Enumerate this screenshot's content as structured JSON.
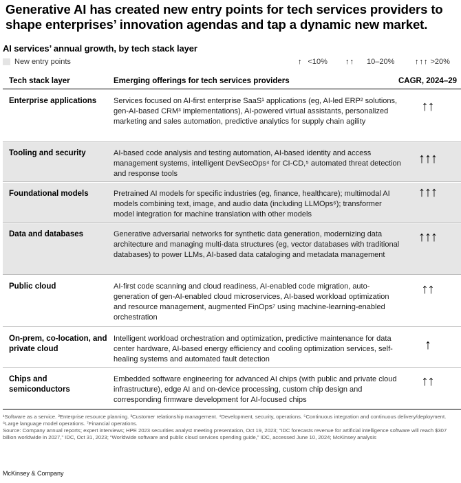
{
  "title": "Generative AI has created new entry points for tech services providers to shape enterprises’ innovation agendas and tap a dynamic new market.",
  "subtitle": "AI services’ annual growth, by tech stack layer",
  "legend": {
    "new_entry": "New entry points",
    "low": {
      "arrows": "↑",
      "label": "<10%"
    },
    "mid": {
      "arrows": "↑↑",
      "label": "10–20%"
    },
    "high": {
      "arrows": "↑↑↑",
      "label": ">20%"
    }
  },
  "headers": {
    "layer": "Tech stack layer",
    "offerings": "Emerging offerings for tech services providers",
    "cagr": "CAGR, 2024–29"
  },
  "rows": [
    {
      "layer": "Enterprise applications",
      "offerings": "Services focused on AI-first enterprise SaaS¹ applications (eg, AI-led ERP² solutions, gen-AI-based CRM³ implementations), AI-powered virtual assistants, personalized marketing and sales automation, predictive analytics for supply chain agility",
      "cagr": "↑↑",
      "new_entry": false
    },
    {
      "layer": "Tooling and security",
      "offerings": "AI-based code analysis and testing automation, AI-based identity and access management systems, intelligent DevSecOps⁴ for CI-CD,⁵ automated threat detection and response tools",
      "cagr": "↑↑↑",
      "new_entry": true
    },
    {
      "layer": "Foundational models",
      "offerings": "Pretrained AI models for specific industries (eg, finance, healthcare); multimodal AI models combining text, image, and audio data (including LLMOps⁶); transformer model integration for machine translation with other models",
      "cagr": "↑↑↑",
      "new_entry": true
    },
    {
      "layer": "Data and databases",
      "offerings": "Generative adversarial networks for synthetic data generation, modernizing data architecture and managing multi-data structures (eg, vector databases with traditional databases) to power LLMs, AI-based data cataloging and metadata management",
      "cagr": "↑↑↑",
      "new_entry": true
    },
    {
      "layer": "Public cloud",
      "offerings": "AI-first code scanning and cloud readiness, AI-enabled code migration, auto-generation of gen-AI-enabled cloud microservices, AI-based workload optimization and resource management, augmented FinOps⁷ using machine-learning-enabled orchestration",
      "cagr": "↑↑",
      "new_entry": false
    },
    {
      "layer": "On-prem, co-location, and private cloud",
      "offerings": "Intelligent workload orchestration and optimization, predictive maintenance for data center hardware, AI-based energy efficiency and cooling optimization services, self-healing systems and automated fault detection",
      "cagr": "↑",
      "new_entry": false
    },
    {
      "layer": "Chips and semiconductors",
      "offerings": "Embedded software engineering for advanced AI chips (with public and private cloud infrastructure), edge AI and on-device processing, custom chip design and corresponding firmware development for AI-focused chips",
      "cagr": "↑↑",
      "new_entry": false
    }
  ],
  "footnotes": {
    "definitions": "¹Software as a service. ²Enterprise resource planning. ³Customer relationship management. ⁴Development, security, operations. ⁵Continuous integration and continuous delivery/deployment. ⁶Large language model operations. ⁷Financial operations.",
    "source": "Source: Company annual reports; expert interviews; HPE 2023 securities analyst meeting presentation, Oct 19, 2023; “IDC forecasts revenue for artificial intelligence software will reach $307 billion worldwide in 2027,” IDC, Oct 31, 2023; “Worldwide software and public cloud services spending guide,” IDC, accessed June 10, 2024; McKinsey analysis"
  },
  "brand": "McKinsey & Company"
}
